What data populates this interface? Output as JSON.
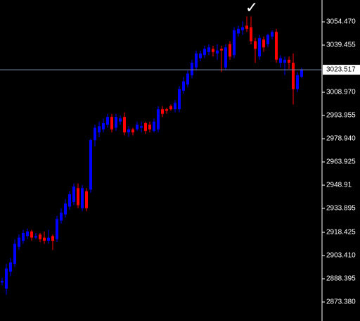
{
  "chart_data": {
    "type": "candlestick",
    "annotation": "✓",
    "up_color": "#0000ff",
    "down_color": "#ff0000",
    "price_line_color": "#7f8fb0",
    "ylim": [
      2861.1,
      3068.6
    ],
    "yticks": [
      {
        "value": 3054.47,
        "label": "3054.470"
      },
      {
        "value": 3039.455,
        "label": "3039.455"
      },
      {
        "value": 3008.97,
        "label": "3008.970"
      },
      {
        "value": 2993.955,
        "label": "2993.955"
      },
      {
        "value": 2978.94,
        "label": "2978.940"
      },
      {
        "value": 2963.925,
        "label": "2963.925"
      },
      2948.91,
      2933.895,
      2918.425,
      {
        "value": 2903.41,
        "label": "2903.410"
      },
      2888.395,
      {
        "value": 2873.38,
        "label": "2873.380"
      }
    ],
    "current_price": 3023.517,
    "open": [
      2886,
      2882,
      2893,
      2898,
      2909,
      2913,
      2916,
      2919,
      2915,
      2917,
      2915,
      2913,
      2916,
      2914,
      2926,
      2930,
      2935,
      2938,
      2947,
      2934,
      2945,
      2946,
      2978,
      2983,
      2985,
      2988,
      2993,
      2986,
      2990,
      2993,
      2983,
      2985,
      2985,
      2986,
      2989,
      2988,
      2984,
      2985,
      2998,
      2998,
      3000,
      2998,
      2998,
      3010,
      3014,
      3020,
      3025,
      3031,
      3033,
      3035,
      3037,
      3034,
      3037,
      3025,
      3040,
      3033,
      3047,
      3049,
      3052,
      3051,
      3042,
      3032,
      3043,
      3040,
      3045,
      3048,
      3028,
      3028,
      3030,
      3028,
      3011,
      3019
    ],
    "high": [
      2889,
      2898,
      2902,
      2914,
      2917,
      2920,
      2921,
      2920,
      2918,
      2918,
      2919,
      2920,
      2917,
      2929,
      2934,
      2940,
      2945,
      2950,
      2950,
      2949,
      2947,
      2979,
      2988,
      2990,
      2992,
      2995,
      2995,
      2995,
      2994,
      2996,
      2987,
      2986,
      2990,
      2990,
      2990,
      2990,
      2992,
      3000,
      3000,
      2999,
      3001,
      3004,
      3013,
      3019,
      3023,
      3030,
      3036,
      3036,
      3039,
      3040,
      3039,
      3040,
      3039,
      3040,
      3042,
      3051,
      3052,
      3055,
      3058,
      3058,
      3044,
      3046,
      3045,
      3047,
      3049,
      3050,
      3033,
      3032,
      3032,
      3034,
      3022,
      3025
    ],
    "low": [
      2884,
      2878,
      2890,
      2896,
      2907,
      2911,
      2914,
      2913,
      2914,
      2912,
      2911,
      2911,
      2907,
      2912,
      2924,
      2928,
      2933,
      2936,
      2934,
      2932,
      2932,
      2944,
      2974,
      2980,
      2983,
      2986,
      2983,
      2984,
      2988,
      2981,
      2980,
      2981,
      2984,
      2983,
      2982,
      2983,
      2983,
      2983,
      2993,
      2995,
      2997,
      2996,
      2996,
      3008,
      3012,
      3018,
      3023,
      3029,
      3031,
      3033,
      3032,
      3030,
      3022,
      3023,
      3030,
      3031,
      3045,
      3046,
      3048,
      3040,
      3028,
      3030,
      3035,
      3038,
      3043,
      3028,
      3025,
      3020,
      3024,
      3001,
      3009,
      3018
    ],
    "close": [
      2887,
      2895,
      2899,
      2911,
      2915,
      2918,
      2919,
      2915,
      2916,
      2914,
      2913,
      2915,
      2913,
      2927,
      2931,
      2937,
      2943,
      2948,
      2936,
      2947,
      2934,
      2978,
      2986,
      2987,
      2989,
      2993,
      2985,
      2993,
      2992,
      2983,
      2985,
      2983,
      2988,
      2987,
      2984,
      2985,
      2990,
      2998,
      2995,
      2997,
      2998,
      3002,
      3011,
      3016,
      3021,
      3028,
      3034,
      3034,
      3037,
      3038,
      3035,
      3036,
      3036,
      3038,
      3032,
      3049,
      3050,
      3051,
      3050,
      3042,
      3037,
      3044,
      3038,
      3046,
      3048,
      3030,
      3031,
      3030,
      3028,
      3011,
      3020,
      3023.5
    ]
  }
}
